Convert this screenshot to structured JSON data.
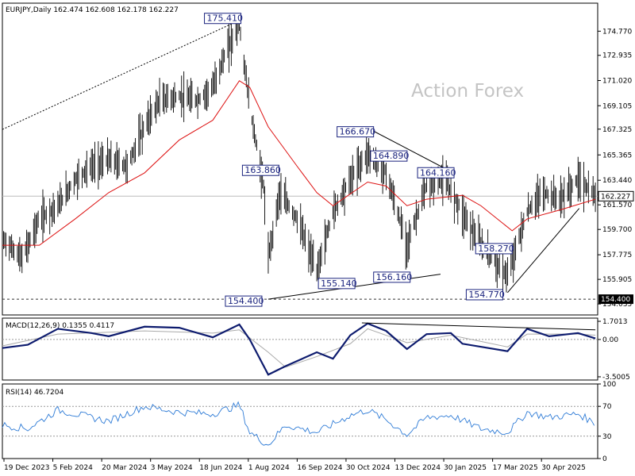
{
  "chart_data": [
    {
      "type": "candlestick",
      "header": "EURJPY,Daily  162.474 162.608 162.178 162.227",
      "watermark": "Action Forex",
      "ylim": [
        153.2,
        176.9
      ],
      "y_ticks": [
        "174.770",
        "172.935",
        "171.020",
        "169.105",
        "167.325",
        "165.365",
        "163.440",
        "161.570",
        "159.700",
        "157.775",
        "155.905",
        "154.035"
      ],
      "current_price": {
        "value": 162.227,
        "label": "162.227"
      },
      "support_line": {
        "value": 154.4,
        "label": "154.400"
      },
      "x_labels": [
        "19 Dec 2023",
        "5 Feb 2024",
        "20 Mar 2024",
        "3 May 2024",
        "18 Jun 2024",
        "1 Aug 2024",
        "16 Sep 2024",
        "30 Oct 2024",
        "13 Dec 2024",
        "30 Jan 2025",
        "17 Mar 2025",
        "30 Apr 2025"
      ],
      "annotations": [
        {
          "label": "175.410",
          "value": 175.41,
          "date": "2024-07-11"
        },
        {
          "label": "163.860",
          "value": 163.86,
          "date": "2024-08-06"
        },
        {
          "label": "154.400",
          "value": 154.4,
          "date": "2024-08-05"
        },
        {
          "label": "155.140",
          "value": 155.14,
          "date": "2024-09-16"
        },
        {
          "label": "166.670",
          "value": 166.67,
          "date": "2024-10-31"
        },
        {
          "label": "164.890",
          "value": 164.89,
          "date": "2024-11-29"
        },
        {
          "label": "156.160",
          "value": 156.16,
          "date": "2024-12-03"
        },
        {
          "label": "164.160",
          "value": 164.16,
          "date": "2025-01-10"
        },
        {
          "label": "154.770",
          "value": 154.77,
          "date": "2025-02-28"
        },
        {
          "label": "158.270",
          "value": 158.27,
          "date": "2025-03-04"
        }
      ],
      "trendlines": [
        {
          "style": "dotted",
          "from": {
            "date": "2023-12-19",
            "value": 167.3
          },
          "to": {
            "date": "2024-07-11",
            "value": 175.6
          }
        },
        {
          "style": "solid",
          "from": {
            "date": "2024-10-28",
            "value": 167.5
          },
          "to": {
            "date": "2025-01-10",
            "value": 164.1
          }
        },
        {
          "style": "solid",
          "from": {
            "date": "2024-08-05",
            "value": 154.4
          },
          "to": {
            "date": "2025-01-01",
            "value": 156.3
          }
        },
        {
          "style": "solid",
          "from": {
            "date": "2025-02-28",
            "value": 154.9
          },
          "to": {
            "date": "2025-05-01",
            "value": 161.3
          }
        }
      ],
      "series": [
        {
          "role": "price",
          "points": [
            {
              "date": "2023-12-19",
              "value": 159.0
            },
            {
              "date": "2024-01-05",
              "value": 157.5
            },
            {
              "date": "2024-01-20",
              "value": 160.5
            },
            {
              "date": "2024-02-05",
              "value": 161.5
            },
            {
              "date": "2024-02-20",
              "value": 163.5
            },
            {
              "date": "2024-03-05",
              "value": 164.5
            },
            {
              "date": "2024-03-20",
              "value": 165.0
            },
            {
              "date": "2024-04-05",
              "value": 164.5
            },
            {
              "date": "2024-04-20",
              "value": 167.5
            },
            {
              "date": "2024-05-03",
              "value": 169.5
            },
            {
              "date": "2024-05-20",
              "value": 169.8
            },
            {
              "date": "2024-06-05",
              "value": 169.5
            },
            {
              "date": "2024-06-18",
              "value": 170.5
            },
            {
              "date": "2024-07-01",
              "value": 173.5
            },
            {
              "date": "2024-07-11",
              "value": 175.2
            },
            {
              "date": "2024-07-20",
              "value": 169.0
            },
            {
              "date": "2024-08-01",
              "value": 163.0
            },
            {
              "date": "2024-08-05",
              "value": 157.5
            },
            {
              "date": "2024-08-15",
              "value": 162.5
            },
            {
              "date": "2024-08-30",
              "value": 160.5
            },
            {
              "date": "2024-09-16",
              "value": 156.5
            },
            {
              "date": "2024-09-30",
              "value": 161.0
            },
            {
              "date": "2024-10-15",
              "value": 163.5
            },
            {
              "date": "2024-10-30",
              "value": 165.5
            },
            {
              "date": "2024-11-15",
              "value": 164.0
            },
            {
              "date": "2024-12-03",
              "value": 158.5
            },
            {
              "date": "2024-12-20",
              "value": 163.0
            },
            {
              "date": "2025-01-05",
              "value": 163.5
            },
            {
              "date": "2025-01-20",
              "value": 161.0
            },
            {
              "date": "2025-02-05",
              "value": 158.5
            },
            {
              "date": "2025-02-28",
              "value": 156.2
            },
            {
              "date": "2025-03-17",
              "value": 161.0
            },
            {
              "date": "2025-03-30",
              "value": 162.5
            },
            {
              "date": "2025-04-15",
              "value": 162.0
            },
            {
              "date": "2025-04-30",
              "value": 163.5
            },
            {
              "date": "2025-05-15",
              "value": 162.2
            }
          ]
        },
        {
          "role": "moving-average",
          "points": [
            {
              "date": "2023-12-19",
              "value": 158.5
            },
            {
              "date": "2024-01-20",
              "value": 158.5
            },
            {
              "date": "2024-02-20",
              "value": 160.5
            },
            {
              "date": "2024-03-20",
              "value": 162.5
            },
            {
              "date": "2024-04-20",
              "value": 164.0
            },
            {
              "date": "2024-05-20",
              "value": 166.5
            },
            {
              "date": "2024-06-18",
              "value": 168.0
            },
            {
              "date": "2024-07-11",
              "value": 171.0
            },
            {
              "date": "2024-07-20",
              "value": 170.5
            },
            {
              "date": "2024-08-05",
              "value": 167.5
            },
            {
              "date": "2024-08-30",
              "value": 164.5
            },
            {
              "date": "2024-09-16",
              "value": 162.5
            },
            {
              "date": "2024-09-30",
              "value": 161.5
            },
            {
              "date": "2024-10-30",
              "value": 163.3
            },
            {
              "date": "2024-11-15",
              "value": 163.0
            },
            {
              "date": "2024-12-03",
              "value": 161.5
            },
            {
              "date": "2024-12-20",
              "value": 162.0
            },
            {
              "date": "2025-01-20",
              "value": 162.3
            },
            {
              "date": "2025-02-05",
              "value": 161.5
            },
            {
              "date": "2025-03-04",
              "value": 159.6
            },
            {
              "date": "2025-03-17",
              "value": 160.5
            },
            {
              "date": "2025-04-15",
              "value": 161.2
            },
            {
              "date": "2025-05-15",
              "value": 162.0
            }
          ]
        }
      ]
    },
    {
      "type": "line",
      "title": "MACD(12,26,9) 0.1355 0.4117",
      "ylim": [
        -3.8,
        2.0
      ],
      "y_ticks": [
        "1.7013",
        "0.00",
        "-3.5005"
      ],
      "series": [
        {
          "role": "macd",
          "points": [
            {
              "date": "2023-12-19",
              "value": -0.8
            },
            {
              "date": "2024-01-10",
              "value": -0.5
            },
            {
              "date": "2024-02-05",
              "value": 1.0
            },
            {
              "date": "2024-03-05",
              "value": 0.6
            },
            {
              "date": "2024-03-20",
              "value": 0.3
            },
            {
              "date": "2024-04-20",
              "value": 1.2
            },
            {
              "date": "2024-05-20",
              "value": 1.1
            },
            {
              "date": "2024-06-18",
              "value": 0.2
            },
            {
              "date": "2024-07-11",
              "value": 1.4
            },
            {
              "date": "2024-07-20",
              "value": 0.0
            },
            {
              "date": "2024-08-05",
              "value": -3.3
            },
            {
              "date": "2024-08-20",
              "value": -2.5
            },
            {
              "date": "2024-09-16",
              "value": -1.2
            },
            {
              "date": "2024-09-30",
              "value": -1.8
            },
            {
              "date": "2024-10-15",
              "value": 0.4
            },
            {
              "date": "2024-10-30",
              "value": 1.5
            },
            {
              "date": "2024-11-15",
              "value": 0.8
            },
            {
              "date": "2024-12-03",
              "value": -0.9
            },
            {
              "date": "2024-12-20",
              "value": 0.5
            },
            {
              "date": "2025-01-10",
              "value": 0.6
            },
            {
              "date": "2025-01-20",
              "value": -0.4
            },
            {
              "date": "2025-02-28",
              "value": -1.1
            },
            {
              "date": "2025-03-17",
              "value": 1.0
            },
            {
              "date": "2025-04-05",
              "value": 0.3
            },
            {
              "date": "2025-04-30",
              "value": 0.6
            },
            {
              "date": "2025-05-15",
              "value": 0.1
            }
          ]
        },
        {
          "role": "signal",
          "points": [
            {
              "date": "2023-12-19",
              "value": -0.6
            },
            {
              "date": "2024-02-05",
              "value": 0.5
            },
            {
              "date": "2024-04-20",
              "value": 0.8
            },
            {
              "date": "2024-06-18",
              "value": 0.6
            },
            {
              "date": "2024-07-11",
              "value": 0.9
            },
            {
              "date": "2024-08-05",
              "value": -1.2
            },
            {
              "date": "2024-08-20",
              "value": -2.6
            },
            {
              "date": "2024-09-16",
              "value": -1.6
            },
            {
              "date": "2024-10-15",
              "value": -0.4
            },
            {
              "date": "2024-10-30",
              "value": 1.0
            },
            {
              "date": "2024-12-03",
              "value": -0.3
            },
            {
              "date": "2025-01-10",
              "value": 0.4
            },
            {
              "date": "2025-02-28",
              "value": -0.7
            },
            {
              "date": "2025-03-17",
              "value": 0.5
            },
            {
              "date": "2025-04-30",
              "value": 0.5
            },
            {
              "date": "2025-05-15",
              "value": 0.4
            }
          ]
        }
      ]
    },
    {
      "type": "line",
      "title": "RSI(14) 46.7204",
      "ylim": [
        0,
        100
      ],
      "y_ticks": [
        "100",
        "70",
        "30",
        "0"
      ],
      "levels": [
        70,
        30
      ],
      "series": [
        {
          "role": "rsi",
          "points": [
            {
              "date": "2023-12-19",
              "value": 45
            },
            {
              "date": "2024-01-10",
              "value": 40
            },
            {
              "date": "2024-02-05",
              "value": 65
            },
            {
              "date": "2024-03-05",
              "value": 55
            },
            {
              "date": "2024-03-20",
              "value": 50
            },
            {
              "date": "2024-04-20",
              "value": 70
            },
            {
              "date": "2024-05-20",
              "value": 62
            },
            {
              "date": "2024-06-18",
              "value": 60
            },
            {
              "date": "2024-07-11",
              "value": 72
            },
            {
              "date": "2024-07-20",
              "value": 35
            },
            {
              "date": "2024-08-05",
              "value": 18
            },
            {
              "date": "2024-08-20",
              "value": 45
            },
            {
              "date": "2024-09-16",
              "value": 35
            },
            {
              "date": "2024-10-15",
              "value": 58
            },
            {
              "date": "2024-10-30",
              "value": 65
            },
            {
              "date": "2024-11-15",
              "value": 52
            },
            {
              "date": "2024-12-03",
              "value": 32
            },
            {
              "date": "2024-12-20",
              "value": 55
            },
            {
              "date": "2025-01-10",
              "value": 58
            },
            {
              "date": "2025-02-05",
              "value": 40
            },
            {
              "date": "2025-02-28",
              "value": 35
            },
            {
              "date": "2025-03-17",
              "value": 62
            },
            {
              "date": "2025-04-05",
              "value": 55
            },
            {
              "date": "2025-04-30",
              "value": 60
            },
            {
              "date": "2025-05-15",
              "value": 47
            }
          ]
        }
      ]
    }
  ]
}
